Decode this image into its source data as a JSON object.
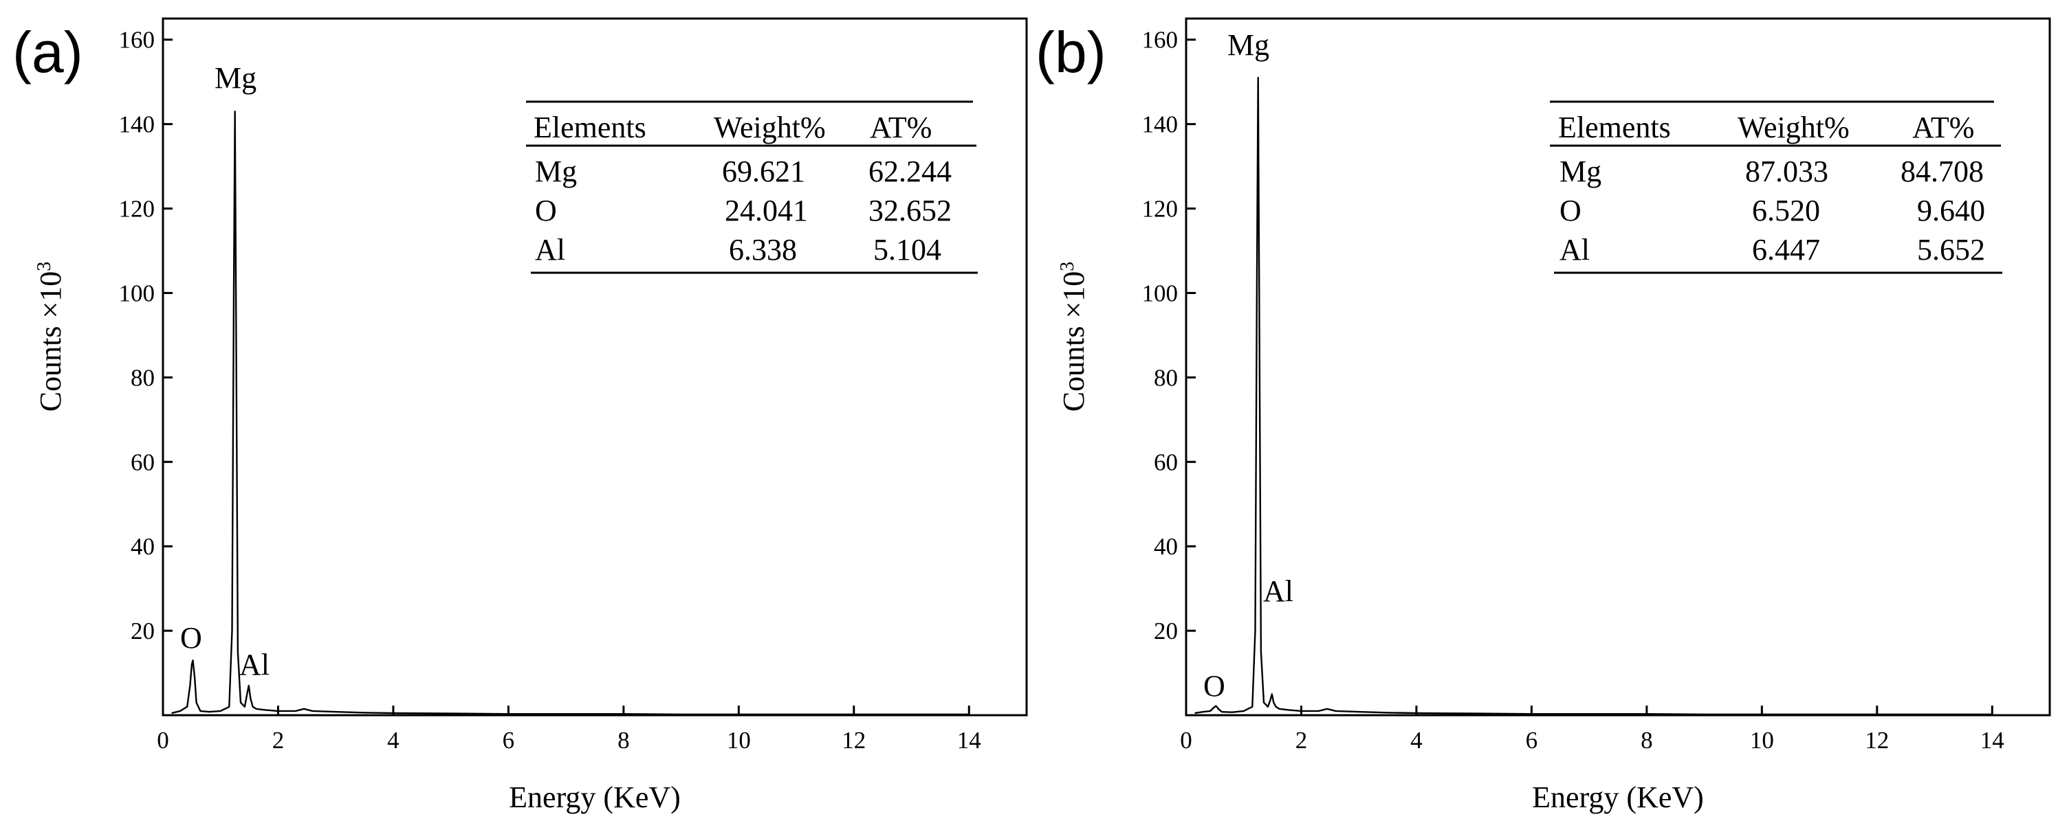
{
  "chart_data": [
    {
      "type": "line",
      "panel_label": "(a)",
      "xlabel": "Energy (KeV)",
      "ylabel_main": "Counts ×10",
      "ylabel_exp": "3",
      "xlim": [
        0,
        15
      ],
      "ylim": [
        0,
        165
      ],
      "x_ticks": [
        0,
        2,
        4,
        6,
        8,
        10,
        12,
        14
      ],
      "y_ticks": [
        20,
        40,
        60,
        80,
        100,
        120,
        140,
        160
      ],
      "peaks": [
        {
          "element": "O",
          "energy": 0.52,
          "counts": 13
        },
        {
          "element": "Mg",
          "energy": 1.25,
          "counts": 143
        },
        {
          "element": "Al",
          "energy": 1.49,
          "counts": 7
        }
      ],
      "series": [
        {
          "name": "spectrum",
          "x": [
            0.15,
            0.3,
            0.42,
            0.47,
            0.5,
            0.52,
            0.55,
            0.58,
            0.65,
            0.8,
            1.0,
            1.15,
            1.2,
            1.23,
            1.25,
            1.27,
            1.3,
            1.35,
            1.42,
            1.46,
            1.49,
            1.52,
            1.56,
            1.62,
            1.8,
            2.0,
            2.3,
            2.45,
            2.6,
            3.0,
            3.5,
            4.0,
            5.0,
            6.0,
            7.0,
            8.0,
            9.0,
            10.0,
            11.0,
            12.0,
            13.0,
            14.0
          ],
          "y": [
            0.5,
            1,
            2,
            7,
            12,
            13,
            9,
            3,
            1,
            0.8,
            1,
            2,
            20,
            100,
            143,
            95,
            15,
            3,
            2,
            5,
            7,
            4,
            2,
            1.5,
            1.2,
            1,
            1,
            1.5,
            1,
            0.8,
            0.6,
            0.5,
            0.4,
            0.3,
            0.3,
            0.3,
            0.2,
            0.2,
            0.2,
            0.2,
            0.2,
            0.2
          ]
        }
      ],
      "table": {
        "headers": [
          "Elements",
          "Weight%",
          "AT%"
        ],
        "rows": [
          [
            "Mg",
            "69.621",
            "62.244"
          ],
          [
            "O",
            "24.041",
            "32.652"
          ],
          [
            "Al",
            "6.338",
            "5.104"
          ]
        ]
      }
    },
    {
      "type": "line",
      "panel_label": "(b)",
      "xlabel": "Energy (KeV)",
      "ylabel_main": "Counts ×10",
      "ylabel_exp": "3",
      "xlim": [
        0,
        15
      ],
      "ylim": [
        0,
        165
      ],
      "x_ticks": [
        0,
        2,
        4,
        6,
        8,
        10,
        12,
        14
      ],
      "y_ticks": [
        20,
        40,
        60,
        80,
        100,
        120,
        140,
        160
      ],
      "peaks": [
        {
          "element": "O",
          "energy": 0.52,
          "counts": 2
        },
        {
          "element": "Mg",
          "energy": 1.25,
          "counts": 151
        },
        {
          "element": "Al",
          "energy": 1.49,
          "counts": 5
        }
      ],
      "series": [
        {
          "name": "spectrum",
          "x": [
            0.15,
            0.3,
            0.42,
            0.48,
            0.52,
            0.56,
            0.62,
            0.8,
            1.0,
            1.15,
            1.2,
            1.23,
            1.25,
            1.27,
            1.3,
            1.35,
            1.42,
            1.46,
            1.49,
            1.52,
            1.56,
            1.62,
            1.8,
            2.0,
            2.3,
            2.45,
            2.6,
            3.0,
            3.5,
            4.0,
            5.0,
            6.0,
            7.0,
            8.0,
            9.0,
            10.0,
            11.0,
            12.0,
            13.0,
            14.0
          ],
          "y": [
            0.5,
            0.8,
            1,
            1.8,
            2.2,
            1.5,
            0.8,
            0.7,
            1,
            2,
            20,
            105,
            151,
            100,
            15,
            3,
            2,
            3.5,
            5,
            3,
            2,
            1.5,
            1.2,
            1,
            1,
            1.5,
            1,
            0.8,
            0.6,
            0.5,
            0.4,
            0.3,
            0.3,
            0.3,
            0.2,
            0.2,
            0.2,
            0.2,
            0.2,
            0.2
          ]
        }
      ],
      "table": {
        "headers": [
          "Elements",
          "Weight%",
          "AT%"
        ],
        "rows": [
          [
            "Mg",
            "87.033",
            "84.708"
          ],
          [
            "O",
            "6.520",
            "9.640"
          ],
          [
            "Al",
            "6.447",
            "5.652"
          ]
        ]
      }
    }
  ]
}
